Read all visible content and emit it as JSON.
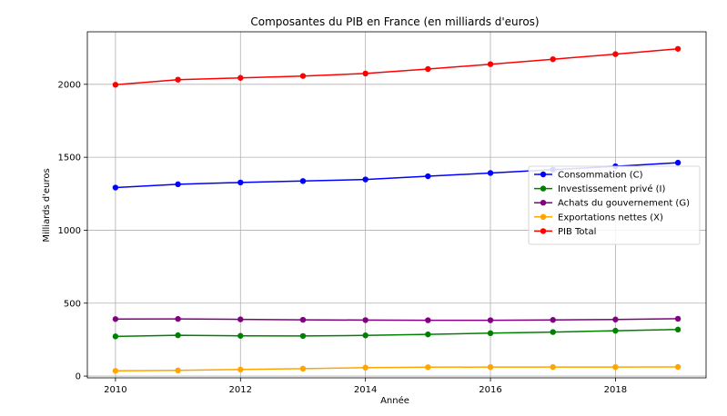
{
  "chart_data": {
    "type": "line",
    "title": "Composantes du PIB en France (en milliards d'euros)",
    "xlabel": "Année",
    "ylabel": "Milliards d'euros",
    "x": [
      2010,
      2011,
      2012,
      2013,
      2014,
      2015,
      2016,
      2017,
      2018,
      2019
    ],
    "xlim": [
      2009.55,
      2019.45
    ],
    "ylim": [
      -12,
      2360
    ],
    "xticks": [
      2010,
      2012,
      2014,
      2016,
      2018
    ],
    "yticks": [
      0,
      500,
      1000,
      1500,
      2000
    ],
    "grid": true,
    "legend_position": "center-right",
    "series": [
      {
        "name": "Consommation (C)",
        "color": "#0000ff",
        "values": [
          1292,
          1315,
          1327,
          1337,
          1348,
          1370,
          1392,
          1415,
          1438,
          1463
        ]
      },
      {
        "name": "Investissement privé (I)",
        "color": "#008000",
        "values": [
          272,
          280,
          276,
          275,
          279,
          286,
          294,
          302,
          311,
          319
        ]
      },
      {
        "name": "Achats du gouvernement (G)",
        "color": "#800080",
        "values": [
          391,
          392,
          389,
          386,
          384,
          383,
          383,
          385,
          388,
          393
        ]
      },
      {
        "name": "Exportations nettes (X)",
        "color": "#ffa500",
        "values": [
          36,
          39,
          45,
          51,
          58,
          61,
          62,
          62,
          62,
          63
        ]
      },
      {
        "name": "PIB Total",
        "color": "#ff0000",
        "values": [
          1997,
          2032,
          2044,
          2057,
          2074,
          2105,
          2138,
          2172,
          2207,
          2243
        ]
      }
    ]
  }
}
